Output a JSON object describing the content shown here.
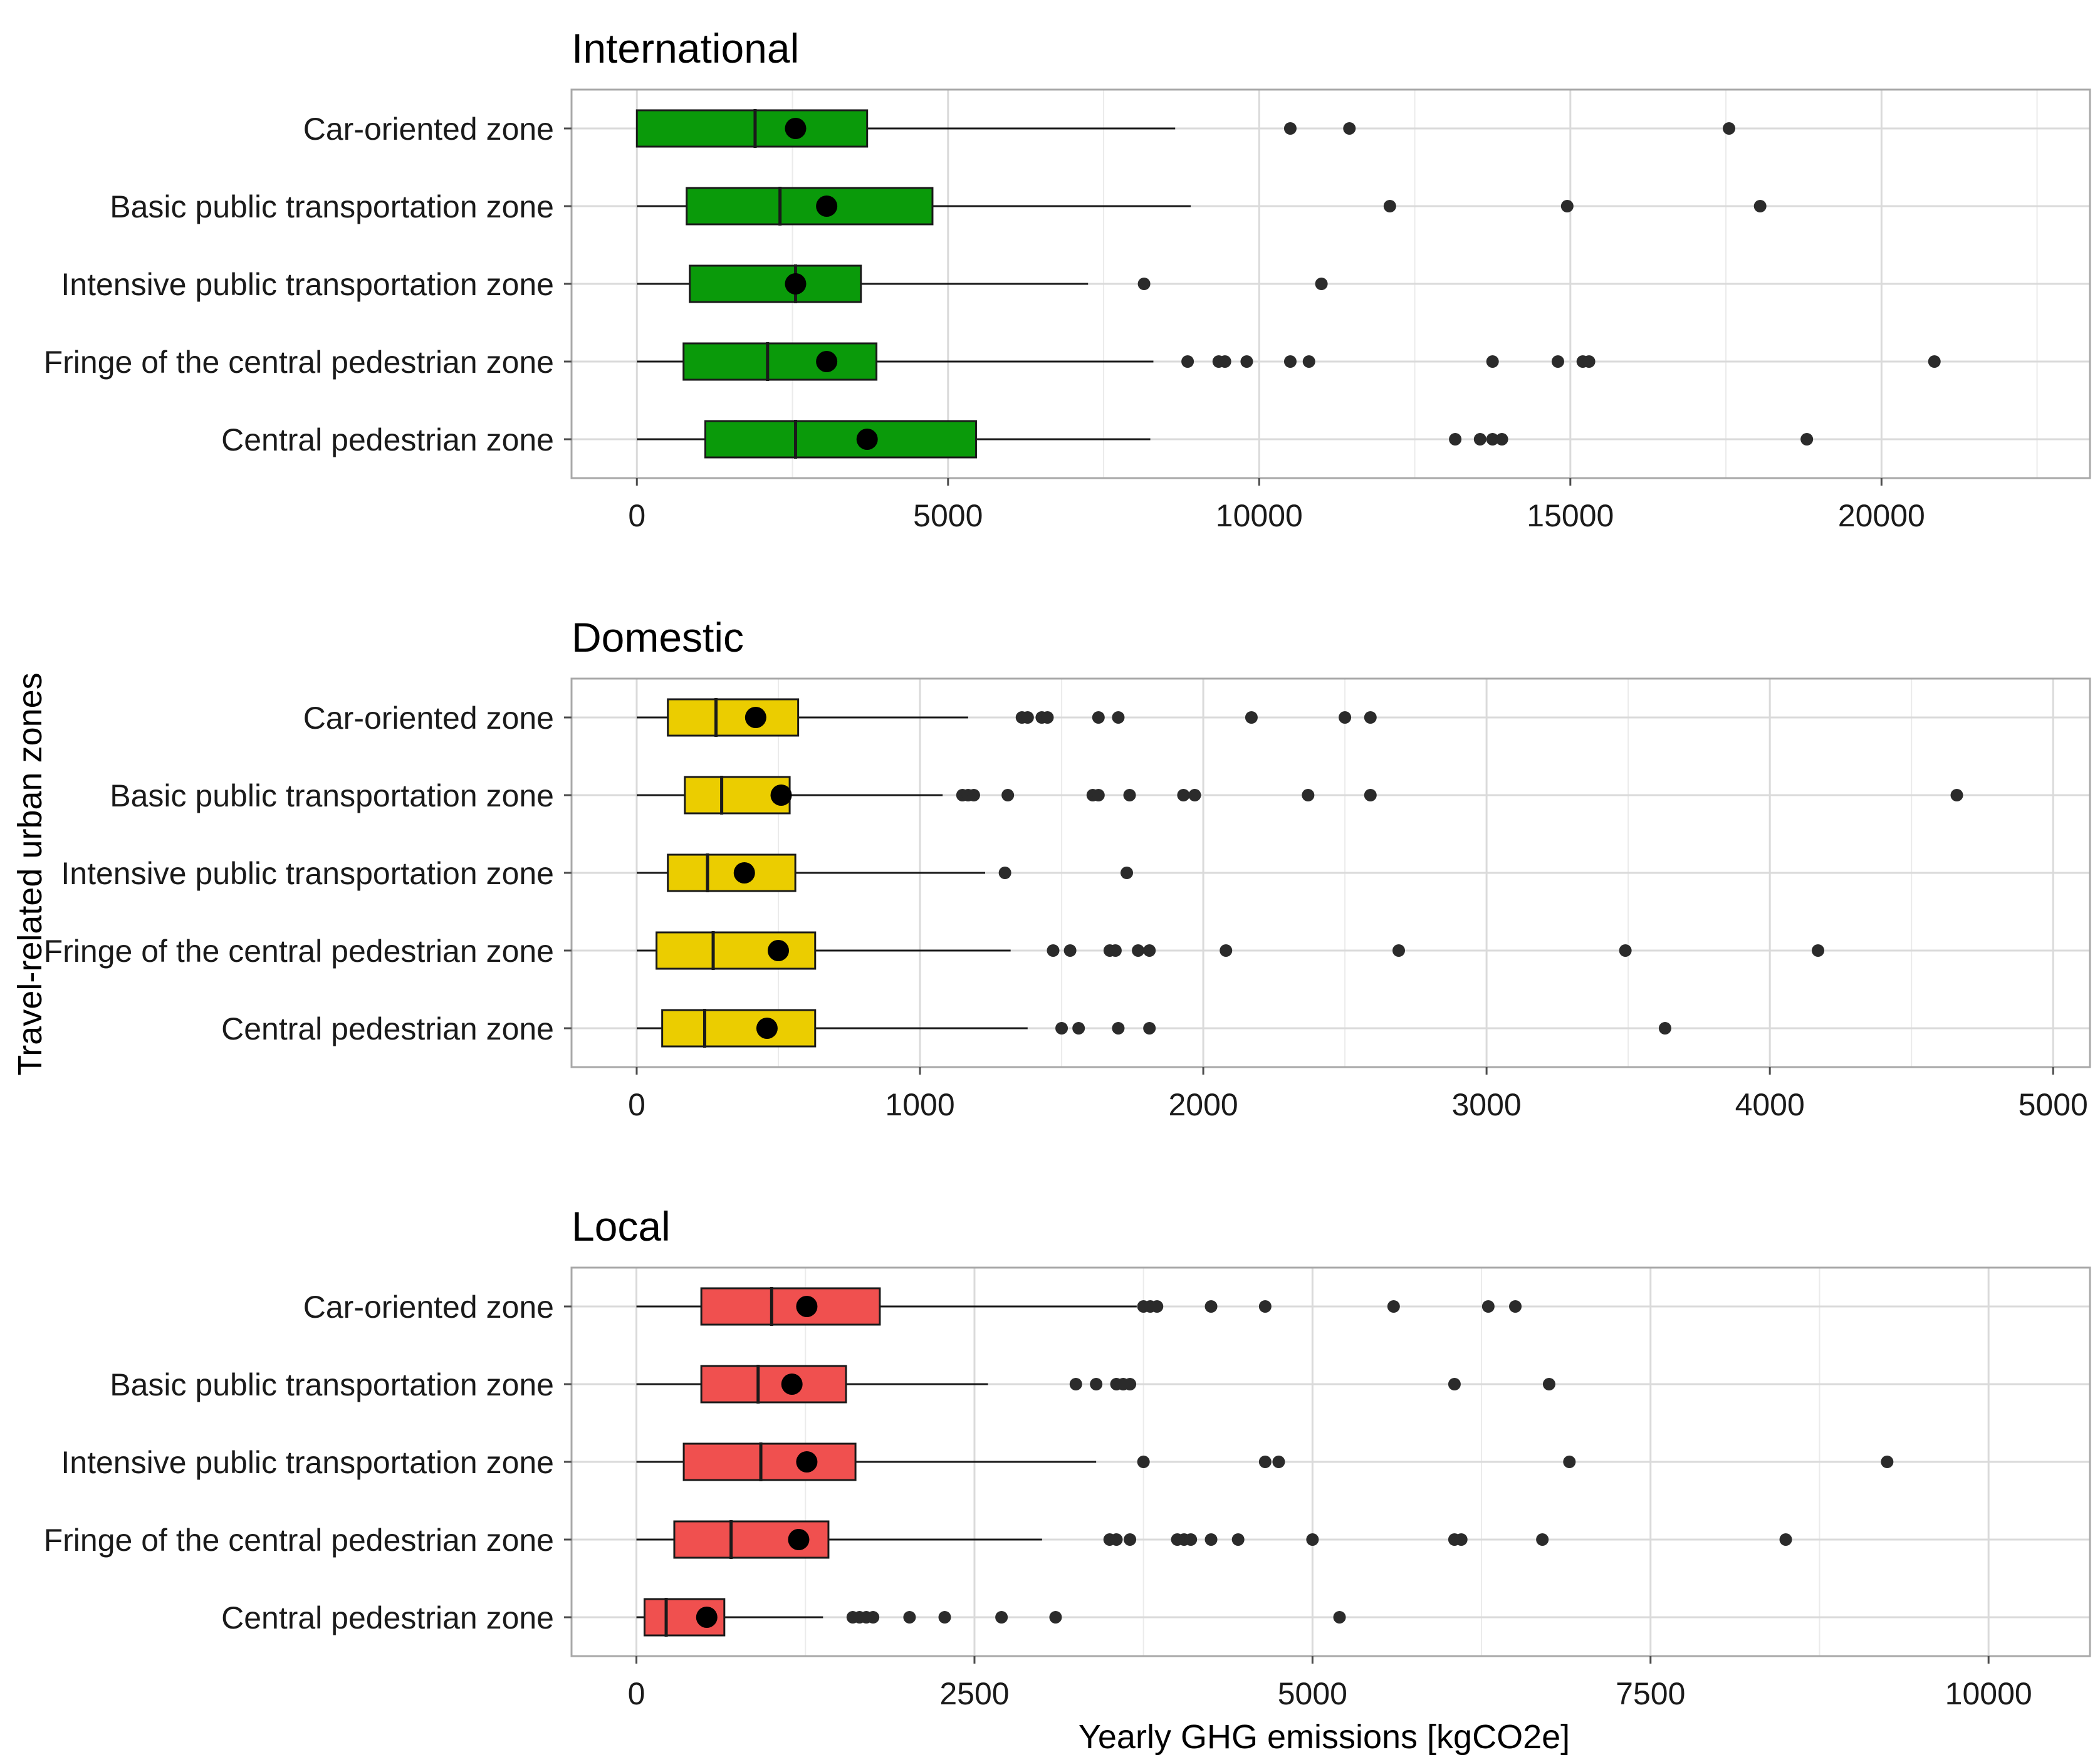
{
  "chart_data": {
    "type": "boxplot",
    "ylabel": "Travel-related urban zones",
    "xlabel": "Yearly GHG emissions [kgCO2e]",
    "categories": [
      "Car-oriented zone",
      "Basic public transportation zone",
      "Intensive public transportation zone",
      "Fringe of the central pedestrian zone",
      "Central pedestrian zone"
    ],
    "panels": [
      {
        "title": "International",
        "color": "#0a9a0a",
        "xlim": [
          -1050,
          23350
        ],
        "ticks": [
          0,
          5000,
          10000,
          15000,
          20000
        ],
        "tick_labels": [
          "0",
          "5000",
          "10000",
          "15000",
          "20000"
        ],
        "minor_ticks": [
          2500,
          7500,
          12500,
          17500,
          22500
        ],
        "series": [
          {
            "name": "Car-oriented zone",
            "whisker_low": 0,
            "q1": 0,
            "median": 1900,
            "q3": 3700,
            "whisker_high": 8650,
            "mean": 2550,
            "outliers": [
              10500,
              11450,
              17550
            ]
          },
          {
            "name": "Basic public transportation zone",
            "whisker_low": 0,
            "q1": 800,
            "median": 2300,
            "q3": 4750,
            "whisker_high": 8900,
            "mean": 3050,
            "outliers": [
              12100,
              14950,
              18050
            ]
          },
          {
            "name": "Intensive public transportation zone",
            "whisker_low": 0,
            "q1": 850,
            "median": 2550,
            "q3": 3600,
            "whisker_high": 7250,
            "mean": 2550,
            "outliers": [
              8150,
              11000
            ]
          },
          {
            "name": "Fringe of the central pedestrian zone",
            "whisker_low": 0,
            "q1": 750,
            "median": 2100,
            "q3": 3850,
            "whisker_high": 8300,
            "mean": 3050,
            "outliers": [
              8850,
              9350,
              9450,
              9800,
              10500,
              10800,
              13750,
              14800,
              15200,
              15300,
              20850
            ]
          },
          {
            "name": "Central pedestrian zone",
            "whisker_low": 0,
            "q1": 1100,
            "median": 2550,
            "q3": 5450,
            "whisker_high": 8250,
            "mean": 3700,
            "outliers": [
              13150,
              13550,
              13750,
              13900,
              18800
            ]
          }
        ]
      },
      {
        "title": "Domestic",
        "color": "#ebcd00",
        "xlim": [
          -230,
          5130
        ],
        "ticks": [
          0,
          1000,
          2000,
          3000,
          4000,
          5000
        ],
        "tick_labels": [
          "0",
          "1000",
          "2000",
          "3000",
          "4000",
          "5000"
        ],
        "minor_ticks": [
          500,
          1500,
          2500,
          3500,
          4500
        ],
        "series": [
          {
            "name": "Car-oriented zone",
            "whisker_low": 0,
            "q1": 110,
            "median": 280,
            "q3": 570,
            "whisker_high": 1170,
            "mean": 420,
            "outliers": [
              1360,
              1380,
              1430,
              1450,
              1630,
              1700,
              2170,
              2500,
              2590
            ]
          },
          {
            "name": "Basic public transportation zone",
            "whisker_low": 0,
            "q1": 170,
            "median": 300,
            "q3": 540,
            "whisker_high": 1080,
            "mean": 510,
            "outliers": [
              1150,
              1170,
              1190,
              1310,
              1610,
              1630,
              1740,
              1930,
              1970,
              2370,
              2590,
              4660
            ]
          },
          {
            "name": "Intensive public transportation zone",
            "whisker_low": 0,
            "q1": 110,
            "median": 250,
            "q3": 560,
            "whisker_high": 1230,
            "mean": 380,
            "outliers": [
              1300,
              1730
            ]
          },
          {
            "name": "Fringe of the central pedestrian zone",
            "whisker_low": 0,
            "q1": 70,
            "median": 270,
            "q3": 630,
            "whisker_high": 1320,
            "mean": 500,
            "outliers": [
              1470,
              1530,
              1670,
              1690,
              1770,
              1810,
              2080,
              2690,
              3490,
              4170
            ]
          },
          {
            "name": "Central pedestrian zone",
            "whisker_low": 0,
            "q1": 90,
            "median": 240,
            "q3": 630,
            "whisker_high": 1380,
            "mean": 460,
            "outliers": [
              1500,
              1560,
              1700,
              1810,
              3630
            ]
          }
        ]
      },
      {
        "title": "Local",
        "color": "#f0504f",
        "xlim": [
          -480,
          10750
        ],
        "ticks": [
          0,
          2500,
          5000,
          7500,
          10000
        ],
        "tick_labels": [
          "0",
          "2500",
          "5000",
          "7500",
          "10000"
        ],
        "minor_ticks": [
          1250,
          3750,
          6250,
          8750
        ],
        "series": [
          {
            "name": "Car-oriented zone",
            "whisker_low": 0,
            "q1": 480,
            "median": 1000,
            "q3": 1800,
            "whisker_high": 3700,
            "mean": 1260,
            "outliers": [
              3750,
              3800,
              3850,
              4250,
              4650,
              5600,
              6300,
              6500
            ]
          },
          {
            "name": "Basic public transportation zone",
            "whisker_low": 0,
            "q1": 480,
            "median": 900,
            "q3": 1550,
            "whisker_high": 2600,
            "mean": 1150,
            "outliers": [
              3250,
              3400,
              3550,
              3600,
              3650,
              6050,
              6750
            ]
          },
          {
            "name": "Intensive public transportation zone",
            "whisker_low": 0,
            "q1": 350,
            "median": 920,
            "q3": 1620,
            "whisker_high": 3400,
            "mean": 1260,
            "outliers": [
              3750,
              4650,
              4750,
              6900,
              9250
            ]
          },
          {
            "name": "Fringe of the central pedestrian zone",
            "whisker_low": 0,
            "q1": 280,
            "median": 700,
            "q3": 1420,
            "whisker_high": 3000,
            "mean": 1200,
            "outliers": [
              3500,
              3550,
              3650,
              4000,
              4050,
              4100,
              4250,
              4450,
              5000,
              6050,
              6100,
              6700,
              8500
            ]
          },
          {
            "name": "Central pedestrian zone",
            "whisker_low": 0,
            "q1": 60,
            "median": 220,
            "q3": 650,
            "whisker_high": 1380,
            "mean": 520,
            "outliers": [
              1600,
              1650,
              1700,
              1750,
              2020,
              2280,
              2700,
              3100,
              5200
            ]
          }
        ]
      }
    ]
  }
}
